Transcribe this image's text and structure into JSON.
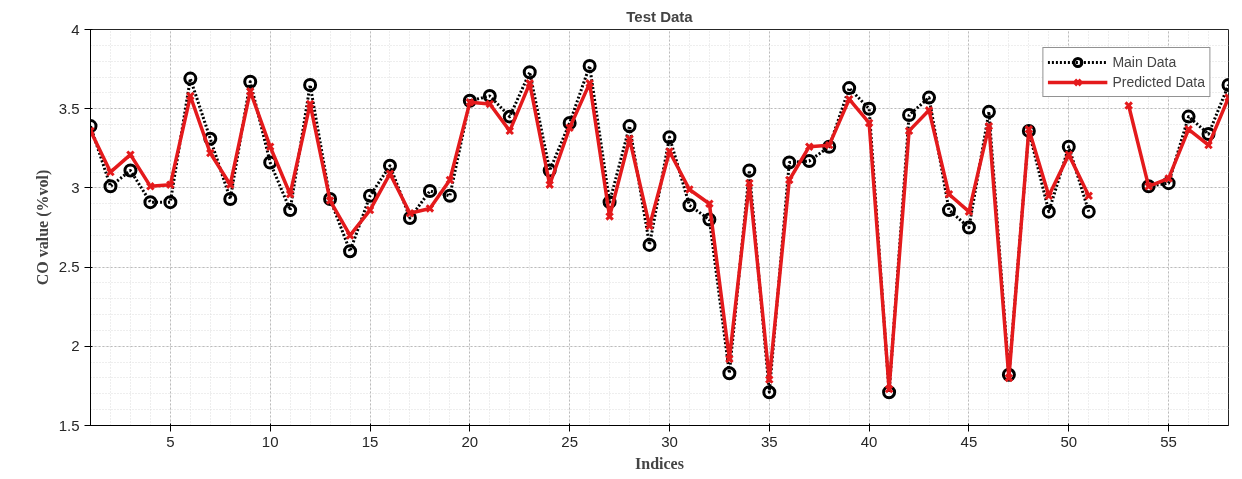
{
  "chart_data": {
    "type": "line",
    "title": "Test Data",
    "xlabel": "Indices",
    "ylabel": "CO value (%vol)",
    "x": [
      1,
      2,
      3,
      4,
      5,
      6,
      7,
      8,
      9,
      10,
      11,
      12,
      13,
      14,
      15,
      16,
      17,
      18,
      19,
      20,
      21,
      22,
      23,
      24,
      25,
      26,
      27,
      28,
      29,
      30,
      31,
      32,
      33,
      34,
      35,
      36,
      37,
      38,
      39,
      40,
      41,
      42,
      43,
      44,
      45,
      46,
      47,
      48,
      49,
      50,
      51,
      52,
      53,
      54,
      55,
      56,
      57,
      58
    ],
    "series": [
      {
        "name": "Main Data",
        "color": "#000000",
        "marker": "circle",
        "line_style": "dotted",
        "values": [
          3.39,
          3.01,
          3.11,
          2.91,
          2.91,
          3.69,
          3.31,
          2.93,
          3.67,
          3.16,
          2.86,
          3.65,
          2.93,
          2.6,
          2.95,
          3.14,
          2.81,
          2.98,
          2.95,
          3.55,
          3.58,
          3.45,
          3.73,
          3.11,
          3.41,
          3.77,
          2.91,
          3.39,
          2.64,
          3.32,
          2.89,
          2.8,
          1.83,
          3.11,
          1.71,
          3.16,
          3.17,
          3.26,
          3.63,
          3.5,
          1.71,
          3.46,
          3.57,
          2.86,
          2.75,
          3.48,
          1.82,
          3.36,
          2.85,
          3.26,
          2.85,
          null,
          null,
          3.01,
          3.03,
          3.45,
          3.34,
          3.65
        ]
      },
      {
        "name": "Predicted Data",
        "color": "#e41a1c",
        "marker": "cross",
        "line_style": "solid",
        "values": [
          3.36,
          3.1,
          3.21,
          3.01,
          3.02,
          3.58,
          3.22,
          3.02,
          3.61,
          3.26,
          2.96,
          3.53,
          2.92,
          2.7,
          2.86,
          3.09,
          2.84,
          2.87,
          3.05,
          3.54,
          3.53,
          3.36,
          3.66,
          3.02,
          3.38,
          3.66,
          2.82,
          3.31,
          2.76,
          3.23,
          2.99,
          2.9,
          1.92,
          3.03,
          1.79,
          3.05,
          3.26,
          3.27,
          3.56,
          3.41,
          1.73,
          3.36,
          3.49,
          2.96,
          2.85,
          3.39,
          1.8,
          3.37,
          2.95,
          3.21,
          2.95,
          null,
          3.52,
          3.01,
          3.06,
          3.37,
          3.27,
          3.57
        ]
      }
    ],
    "xlim": [
      1,
      58
    ],
    "xticks": [
      5,
      10,
      15,
      20,
      25,
      30,
      35,
      40,
      45,
      50,
      55
    ],
    "ylim": [
      1.5,
      4
    ],
    "yticks": [
      1.5,
      2,
      2.5,
      3,
      3.5,
      4
    ],
    "grid": true,
    "legend": "top right"
  }
}
